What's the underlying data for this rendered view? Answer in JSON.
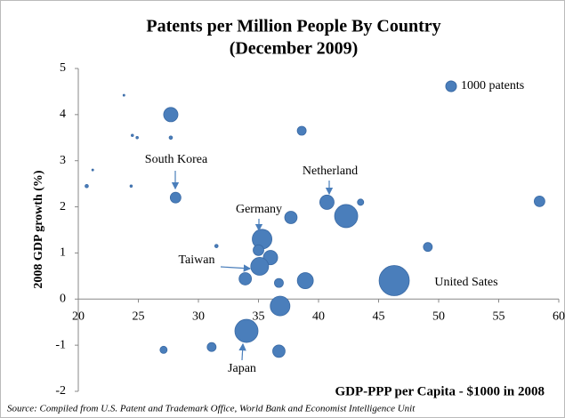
{
  "chart_data": {
    "type": "bubble",
    "title": "Patents  per Million People By Country",
    "subtitle": "(December 2009)",
    "xlabel": "GDP-PPP per Capita - $1000 in 2008",
    "ylabel": "2008 GDP growth (%)",
    "source": "Source: Compiled from U.S. Patent and Trademark Office, World Bank and Economist Intelligence Unit",
    "color": "#4a7ebb",
    "x": [
      27.7,
      38.6,
      23.8,
      24.5,
      24.9,
      27.7,
      21.2,
      20.7,
      24.4,
      28.1,
      40.7,
      42.3,
      43.5,
      58.4,
      37.7,
      35.3,
      35.0,
      31.5,
      36.0,
      35.1,
      49.1,
      33.9,
      36.7,
      38.9,
      46.3,
      36.8,
      34.0,
      31.1,
      27.1,
      36.7
    ],
    "values": [
      4.0,
      3.65,
      4.42,
      3.55,
      3.5,
      3.5,
      2.8,
      2.45,
      2.45,
      2.2,
      2.1,
      1.8,
      2.1,
      2.12,
      1.77,
      1.3,
      1.06,
      1.15,
      0.9,
      0.71,
      1.13,
      0.44,
      0.35,
      0.4,
      0.4,
      -0.15,
      -0.69,
      -1.04,
      -1.1,
      -1.13
    ],
    "sizes": [
      1800,
      700,
      30,
      50,
      50,
      100,
      30,
      100,
      50,
      1000,
      1800,
      4700,
      350,
      1000,
      1350,
      3400,
      1000,
      100,
      1800,
      2800,
      700,
      1350,
      700,
      2250,
      8000,
      3400,
      4700,
      700,
      450,
      1350
    ],
    "size_legend": {
      "value": 1000,
      "label": "1000 patents"
    },
    "annotations": [
      "South Korea",
      "Netherland",
      "Germany",
      "Taiwan",
      "United Sates",
      "Japan"
    ],
    "xlim": [
      20,
      60
    ],
    "xticks": [
      20,
      25,
      30,
      35,
      40,
      45,
      50,
      55,
      60
    ],
    "ylim": [
      -2,
      5
    ],
    "yticks": [
      -2,
      -1,
      0,
      1,
      2,
      3,
      4,
      5
    ]
  }
}
